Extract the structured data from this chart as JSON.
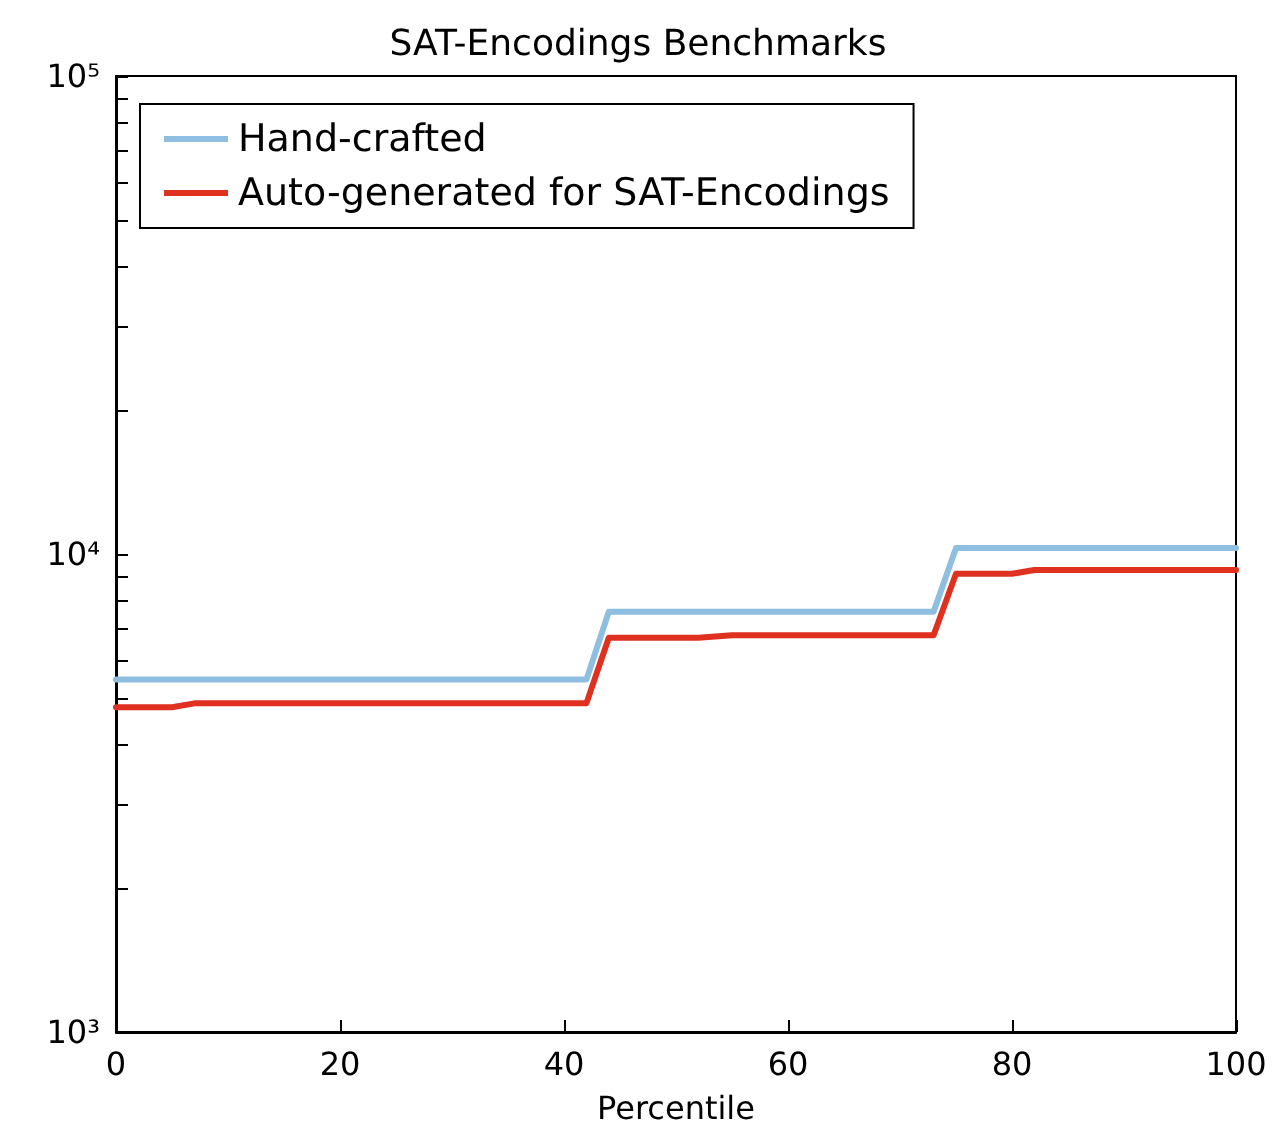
{
  "chart_data": {
    "type": "line",
    "title": "SAT-Encodings Benchmarks",
    "xlabel": "Percentile",
    "log": "y",
    "grid": false,
    "legend": "top left",
    "marker": "none",
    "line_style": "solid",
    "xlim": [
      0,
      100
    ],
    "xticks": [
      0,
      20,
      40,
      60,
      80,
      100
    ],
    "ylim": [
      1000,
      100000
    ],
    "yticks": [
      {
        "value": 1000,
        "label": "10³"
      },
      {
        "value": 2000,
        "label": null
      },
      {
        "value": 3000,
        "label": null
      },
      {
        "value": 4000,
        "label": null
      },
      {
        "value": 5000,
        "label": null
      },
      {
        "value": 6000,
        "label": null
      },
      {
        "value": 7000,
        "label": null
      },
      {
        "value": 8000,
        "label": null
      },
      {
        "value": 9000,
        "label": null
      },
      {
        "value": 10000,
        "label": "10⁴"
      },
      {
        "value": 20000,
        "label": null
      },
      {
        "value": 30000,
        "label": null
      },
      {
        "value": 40000,
        "label": null
      },
      {
        "value": 50000,
        "label": null
      },
      {
        "value": 60000,
        "label": null
      },
      {
        "value": 70000,
        "label": null
      },
      {
        "value": 80000,
        "label": null
      },
      {
        "value": 90000,
        "label": null
      },
      {
        "value": 100000,
        "label": "10⁵"
      }
    ],
    "series": [
      {
        "name": "Hand-crafted",
        "color": "#8fbfe0",
        "x": [
          0,
          42,
          44,
          73,
          75,
          100
        ],
        "values": [
          5460,
          5460,
          7570,
          7570,
          10290,
          10290
        ]
      },
      {
        "name": "Auto-generated for SAT-Encodings",
        "color": "#e03020",
        "x": [
          0,
          5,
          7,
          42,
          44,
          52,
          55,
          73,
          75,
          80,
          82,
          100
        ],
        "values": [
          4780,
          4780,
          4870,
          4870,
          6680,
          6680,
          6760,
          6760,
          9090,
          9090,
          9260,
          9260
        ]
      }
    ]
  }
}
